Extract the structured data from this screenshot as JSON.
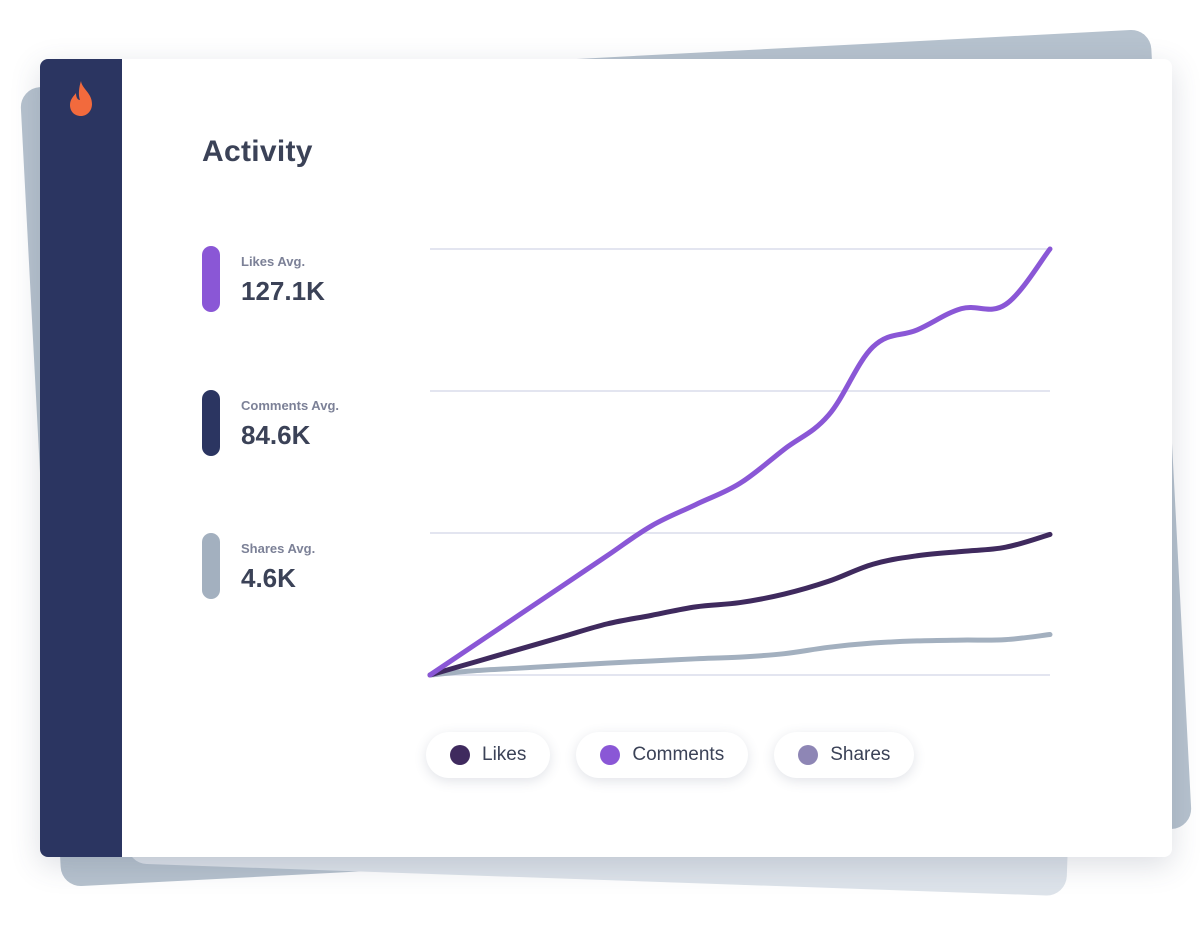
{
  "app": {
    "logo_icon": "flame-icon",
    "logo_color": "#f26a3d",
    "sidebar_color": "#2b3561"
  },
  "title": "Activity",
  "stats": [
    {
      "label": "Likes Avg.",
      "value": "127.1K",
      "color": "#8a57d6"
    },
    {
      "label": "Comments Avg.",
      "value": "84.6K",
      "color": "#2b3561"
    },
    {
      "label": "Shares Avg.",
      "value": "4.6K",
      "color": "#a3b0bf"
    }
  ],
  "legend": [
    {
      "label": "Likes",
      "color": "#3f2a5e"
    },
    {
      "label": "Comments",
      "color": "#8a57d6"
    },
    {
      "label": "Shares",
      "color": "#8e86b5"
    }
  ],
  "chart_data": {
    "type": "line",
    "grid": true,
    "ylim": [
      0,
      100
    ],
    "x": [
      0,
      1,
      2,
      3,
      4,
      5,
      6,
      7,
      8,
      9,
      10,
      11,
      12,
      13,
      14
    ],
    "series": [
      {
        "name": "Comments",
        "color": "#8a57d6",
        "values": [
          0,
          7,
          14,
          21,
          28,
          35,
          40,
          45,
          53,
          61,
          77,
          81,
          86,
          87,
          100
        ]
      },
      {
        "name": "Likes",
        "color": "#3f2a5e",
        "values": [
          0,
          3,
          6,
          9,
          12,
          14,
          16,
          17,
          19,
          22,
          26,
          28,
          29,
          30,
          33
        ]
      },
      {
        "name": "Shares",
        "color": "#a3b0bf",
        "values": [
          0,
          1,
          1.6,
          2.2,
          2.8,
          3.3,
          3.8,
          4.2,
          5,
          6.5,
          7.5,
          8,
          8.2,
          8.3,
          9.5
        ]
      }
    ]
  }
}
